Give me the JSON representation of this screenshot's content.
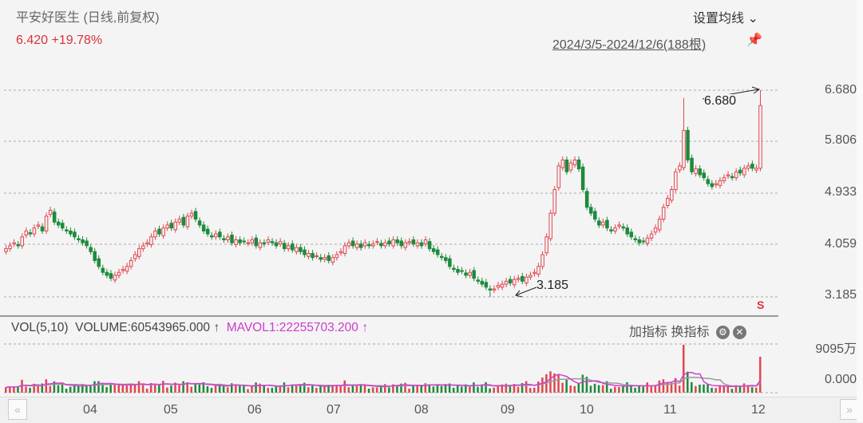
{
  "header": {
    "title": "平安好医生 (日线,前复权)",
    "price": "6.420",
    "change": "+19.78%",
    "ma_settings": "设置均线 ⌄",
    "range": "2024/3/5-2024/12/6(188根)"
  },
  "chart_data": {
    "type": "candlestick",
    "y_ticks": [
      "6.680",
      "5.806",
      "4.933",
      "4.059",
      "3.185"
    ],
    "ylim": [
      3.185,
      6.68
    ],
    "x_ticks": [
      "04",
      "05",
      "06",
      "07",
      "08",
      "09",
      "10",
      "11",
      "12"
    ],
    "annotations": {
      "high": "6.680",
      "low": "3.185"
    },
    "up_color": "#e0474f",
    "down_color": "#1e8a3c",
    "closes": [
      4.0,
      4.05,
      4.1,
      4.05,
      4.2,
      4.3,
      4.25,
      4.35,
      4.4,
      4.3,
      4.55,
      4.65,
      4.45,
      4.4,
      4.35,
      4.3,
      4.25,
      4.2,
      4.15,
      4.1,
      4.05,
      3.95,
      3.8,
      3.7,
      3.6,
      3.55,
      3.5,
      3.55,
      3.6,
      3.65,
      3.7,
      3.8,
      3.9,
      4.0,
      4.05,
      4.1,
      4.2,
      4.3,
      4.25,
      4.35,
      4.4,
      4.35,
      4.45,
      4.5,
      4.4,
      4.55,
      4.6,
      4.5,
      4.4,
      4.3,
      4.25,
      4.2,
      4.25,
      4.2,
      4.15,
      4.2,
      4.1,
      4.15,
      4.1,
      4.12,
      4.1,
      4.15,
      4.05,
      4.1,
      4.08,
      4.15,
      4.1,
      4.05,
      4.12,
      4.0,
      4.05,
      3.98,
      4.02,
      3.95,
      3.9,
      3.92,
      3.85,
      3.88,
      3.82,
      3.85,
      3.8,
      3.85,
      3.9,
      3.95,
      4.05,
      4.1,
      4.05,
      4.08,
      4.02,
      4.1,
      4.05,
      4.08,
      4.12,
      4.05,
      4.1,
      4.08,
      4.15,
      4.1,
      4.05,
      4.1,
      4.12,
      4.08,
      4.1,
      4.05,
      4.15,
      4.0,
      3.95,
      3.9,
      3.85,
      3.8,
      3.7,
      3.65,
      3.6,
      3.62,
      3.55,
      3.6,
      3.5,
      3.45,
      3.4,
      3.35,
      3.3,
      3.32,
      3.38,
      3.4,
      3.45,
      3.42,
      3.48,
      3.5,
      3.45,
      3.52,
      3.55,
      3.6,
      3.7,
      3.9,
      4.2,
      4.6,
      5.0,
      5.4,
      5.5,
      5.3,
      5.45,
      5.5,
      5.35,
      5.0,
      4.7,
      4.6,
      4.5,
      4.4,
      4.45,
      4.35,
      4.3,
      4.35,
      4.4,
      4.35,
      4.25,
      4.2,
      4.15,
      4.1,
      4.12,
      4.18,
      4.25,
      4.35,
      4.5,
      4.7,
      4.85,
      5.0,
      5.3,
      5.4,
      6.0,
      5.5,
      5.3,
      5.35,
      5.25,
      5.2,
      5.1,
      5.05,
      5.1,
      5.15,
      5.2,
      5.25,
      5.2,
      5.3,
      5.28,
      5.36,
      5.4,
      5.36,
      5.36,
      6.42
    ]
  },
  "volume": {
    "label": "VOL(5,10)",
    "volume": "VOLUME:60543965.000 ↑",
    "mavol": "MAVOL1:22255703.200 ↑",
    "top_tick": "9095万",
    "bottom_tick": "0.000",
    "add": "加指标",
    "swap": "换指标"
  }
}
